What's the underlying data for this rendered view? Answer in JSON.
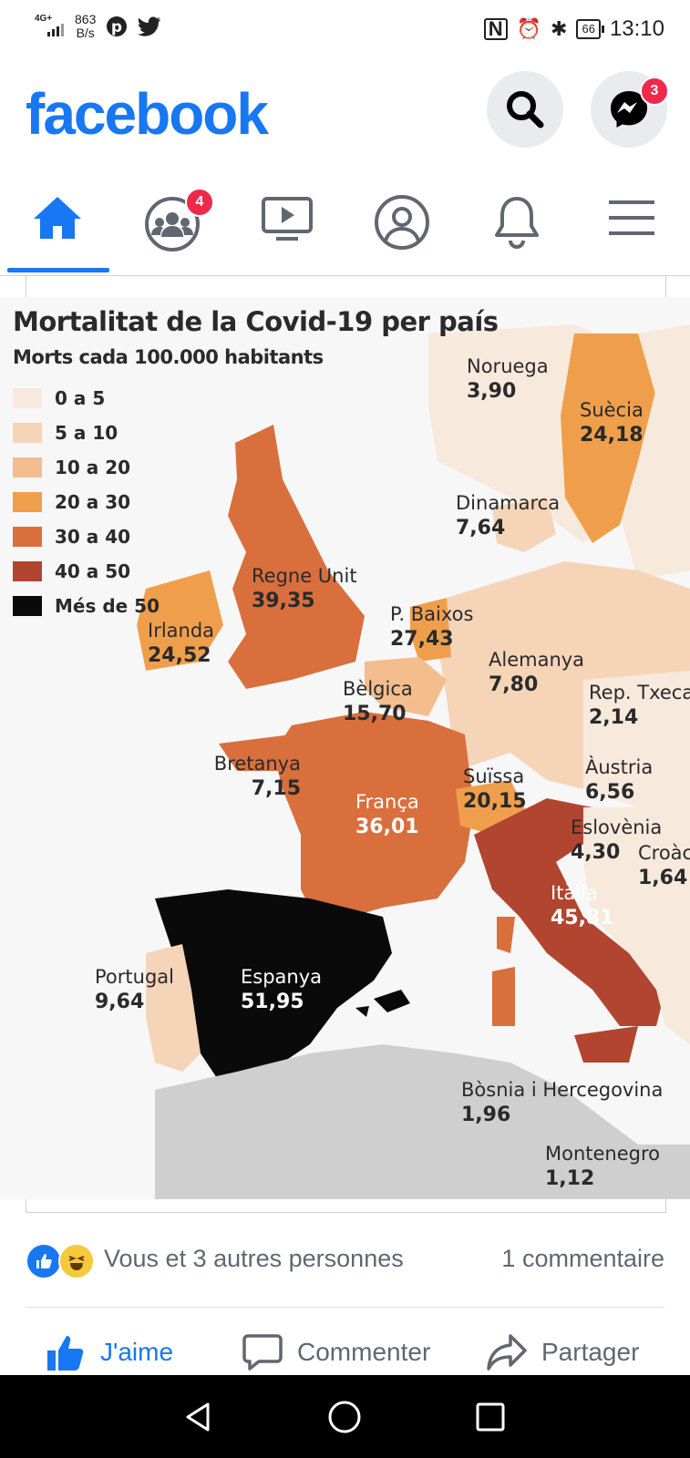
{
  "status_bar": {
    "network": "4G+",
    "speed_value": "863",
    "speed_unit": "B/s",
    "battery": "66",
    "time": "13:10"
  },
  "header": {
    "logo": "facebook",
    "messenger_badge": "3"
  },
  "nav": {
    "groups_badge": "4",
    "active_tab": "home"
  },
  "post": {
    "map": {
      "title": "Mortalitat de la Covid-19 per país",
      "subtitle": "Morts cada 100.000 habitants",
      "legend": [
        {
          "label": "0 a 5",
          "color": "#f7e9dc"
        },
        {
          "label": "5 a 10",
          "color": "#f5d4b8"
        },
        {
          "label": "10 a 20",
          "color": "#f3bd8e"
        },
        {
          "label": "20 a 30",
          "color": "#ef9f4c"
        },
        {
          "label": "30 a 40",
          "color": "#d96f3c"
        },
        {
          "label": "40 a 50",
          "color": "#b2452f"
        },
        {
          "label": "Més de 50",
          "color": "#0a0a0a"
        }
      ],
      "countries": [
        {
          "name": "Noruega",
          "value": "3,90"
        },
        {
          "name": "Suècia",
          "value": "24,18"
        },
        {
          "name": "Dinamarca",
          "value": "7,64"
        },
        {
          "name": "Regne Unit",
          "value": "39,35"
        },
        {
          "name": "Irlanda",
          "value": "24,52"
        },
        {
          "name": "P. Baixos",
          "value": "27,43"
        },
        {
          "name": "Alemanya",
          "value": "7,80"
        },
        {
          "name": "Bèlgica",
          "value": "15,70"
        },
        {
          "name": "Rep. Txeca",
          "value": "2,14"
        },
        {
          "name": "Bretanya",
          "value": "7,15"
        },
        {
          "name": "França",
          "value": "36,01"
        },
        {
          "name": "Suïssa",
          "value": "20,15"
        },
        {
          "name": "Àustria",
          "value": "6,56"
        },
        {
          "name": "Eslovènia",
          "value": "4,30"
        },
        {
          "name": "Croàc",
          "value": "1,64"
        },
        {
          "name": "Itàlia",
          "value": "45,81"
        },
        {
          "name": "Portugal",
          "value": "9,64"
        },
        {
          "name": "Espanya",
          "value": "51,95"
        },
        {
          "name": "Bòsnia i Hercegovina",
          "value": "1,96"
        },
        {
          "name": "Montenegro",
          "value": "1,12"
        }
      ]
    },
    "reactions_text": "Vous et 3 autres personnes",
    "comments_text": "1 commentaire",
    "actions": {
      "like": "J'aime",
      "comment": "Commenter",
      "share": "Partager"
    }
  },
  "colors": {
    "brand": "#1877f2",
    "badge": "#f02849"
  }
}
